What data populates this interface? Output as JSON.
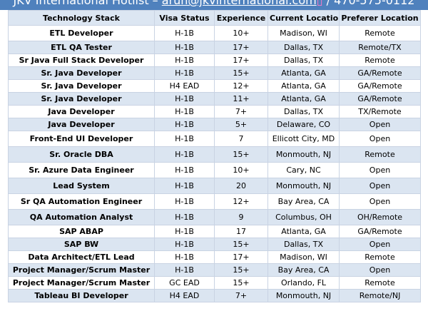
{
  "header": {
    "title_prefix": "JKV International Hotlist – ",
    "email": "arun@jkvinternational.com",
    "title_suffix": " / 470-575-0112"
  },
  "table": {
    "columns": [
      "Technology Stack",
      "Visa Status",
      "Experience",
      "Current Location",
      "Preferer Location"
    ],
    "rows": [
      {
        "tech": "ETL Developer",
        "visa": "H-1B",
        "exp": "10+",
        "current": "Madison, WI",
        "preferred": "Remote"
      },
      {
        "tech": "ETL QA Tester",
        "visa": "H-1B",
        "exp": "17+",
        "current": "Dallas, TX",
        "preferred": "Remote/TX"
      },
      {
        "tech": "Sr Java Full Stack Developer",
        "visa": "H-1B",
        "exp": "17+",
        "current": "Dallas, TX",
        "preferred": "Remote"
      },
      {
        "tech": "Sr. Java Developer",
        "visa": "H-1B",
        "exp": "15+",
        "current": "Atlanta, GA",
        "preferred": "GA/Remote"
      },
      {
        "tech": "Sr. Java Developer",
        "visa": "H4 EAD",
        "exp": "12+",
        "current": "Atlanta, GA",
        "preferred": "GA/Remote"
      },
      {
        "tech": "Sr. Java Developer",
        "visa": "H-1B",
        "exp": "11+",
        "current": "Atlanta, GA",
        "preferred": "GA/Remote"
      },
      {
        "tech": "Java Developer",
        "visa": "H-1B",
        "exp": "7+",
        "current": "Dallas, TX",
        "preferred": "TX/Remote"
      },
      {
        "tech": "Java Developer",
        "visa": "H-1B",
        "exp": "5+",
        "current": "Delaware, CO",
        "preferred": "Open"
      },
      {
        "tech": "Front-End UI Developer",
        "visa": "H-1B",
        "exp": "7",
        "current": "Ellicott City, MD",
        "preferred": "Open"
      },
      {
        "tech": "Sr. Oracle DBA",
        "visa": "H-1B",
        "exp": "15+",
        "current": "Monmouth, NJ",
        "preferred": "Remote"
      },
      {
        "tech": "Sr. Azure Data Engineer",
        "visa": "H-1B",
        "exp": "10+",
        "current": "Cary, NC",
        "preferred": "Open"
      },
      {
        "tech": "Lead System",
        "visa": "H-1B",
        "exp": "20",
        "current": "Monmouth, NJ",
        "preferred": "Open"
      },
      {
        "tech": "Sr QA Automation Engineer",
        "visa": "H-1B",
        "exp": "12+",
        "current": "Bay Area, CA",
        "preferred": "Open"
      },
      {
        "tech": "QA Automation Analyst",
        "visa": "H-1B",
        "exp": "9",
        "current": "Columbus, OH",
        "preferred": "OH/Remote"
      },
      {
        "tech": "SAP ABAP",
        "visa": "H-1B",
        "exp": "17",
        "current": "Atlanta, GA",
        "preferred": "GA/Remote"
      },
      {
        "tech": "SAP BW",
        "visa": "H-1B",
        "exp": "15+",
        "current": "Dallas, TX",
        "preferred": "Open"
      },
      {
        "tech": "Data Architect/ETL Lead",
        "visa": "H-1B",
        "exp": "17+",
        "current": "Madison, WI",
        "preferred": "Remote"
      },
      {
        "tech": "Project Manager/Scrum Master",
        "visa": "H-1B",
        "exp": "15+",
        "current": "Bay Area, CA",
        "preferred": "Open"
      },
      {
        "tech": "Project Manager/Scrum Master",
        "visa": "GC EAD",
        "exp": "15+",
        "current": "Orlando, FL",
        "preferred": "Remote"
      },
      {
        "tech": "Tableau BI Developer",
        "visa": "H4 EAD",
        "exp": "7+",
        "current": "Monmouth, NJ",
        "preferred": "Remote/NJ"
      }
    ]
  }
}
